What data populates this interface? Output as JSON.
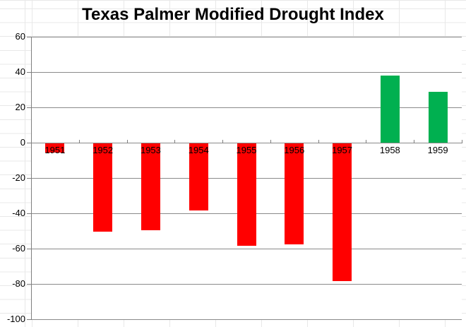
{
  "chart": {
    "title": "Texas Palmer Modified Drought Index"
  },
  "chart_data": {
    "type": "bar",
    "title": "Texas Palmer Modified Drought Index",
    "categories": [
      "1951",
      "1952",
      "1953",
      "1954",
      "1955",
      "1956",
      "1957",
      "1958",
      "1959"
    ],
    "values": [
      -5,
      -50,
      -49,
      -38,
      -58,
      -57,
      -78,
      38,
      29
    ],
    "xlabel": "",
    "ylabel": "",
    "ylim": [
      -100,
      60
    ],
    "ytick_interval": 20,
    "yticks": [
      60,
      40,
      20,
      0,
      -20,
      -40,
      -60,
      -80,
      -100
    ],
    "grid": "horizontal-major",
    "legend": "none",
    "category_labels_position": "below-zero-axis",
    "colors": {
      "negative_bar": "#FF0000",
      "positive_bar": "#00B050",
      "gridline": "#8A8A8A",
      "axis": "#7F7F7F",
      "text": "#000000",
      "worksheet_grid": "#E8E8E8",
      "plot_background": "#FFFFFF"
    }
  }
}
